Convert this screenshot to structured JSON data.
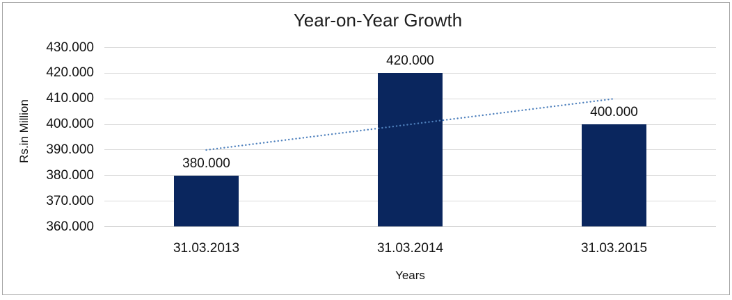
{
  "frame": {
    "background": "#ffffff",
    "border_color": "#a6a6a6"
  },
  "chart_data": {
    "type": "bar",
    "title": "Year-on-Year Growth",
    "xlabel": "Years",
    "ylabel": "Rs.in Million",
    "categories": [
      "31.03.2013",
      "31.03.2014",
      "31.03.2015"
    ],
    "values": [
      380000,
      420000,
      400000
    ],
    "value_labels": [
      "380.000",
      "420.000",
      "400.000"
    ],
    "ylim": [
      360000,
      430000
    ],
    "ytick_step": 10000,
    "ytick_labels": [
      "360.000",
      "370.000",
      "380.000",
      "390.000",
      "400.000",
      "410.000",
      "420.000",
      "430.000"
    ],
    "grid": true,
    "legend": "none",
    "bar_color": "#0a265e",
    "gridline_color": "#d9d9d9",
    "axis_line_color": "#c6c6c6",
    "text_color": "#111111",
    "trendline": {
      "kind": "linear",
      "style": "dotted",
      "color": "#4f81bd",
      "start_value": 390000,
      "end_value": 410000
    }
  }
}
